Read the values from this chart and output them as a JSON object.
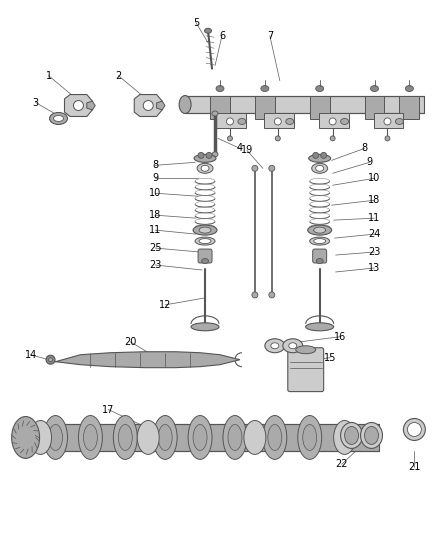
{
  "background_color": "#ffffff",
  "line_color": "#555555",
  "fig_width": 4.38,
  "fig_height": 5.33,
  "dpi": 100,
  "gray_dark": "#888888",
  "gray_mid": "#aaaaaa",
  "gray_light": "#cccccc",
  "gray_fill": "#c8c8c8",
  "white": "#ffffff"
}
